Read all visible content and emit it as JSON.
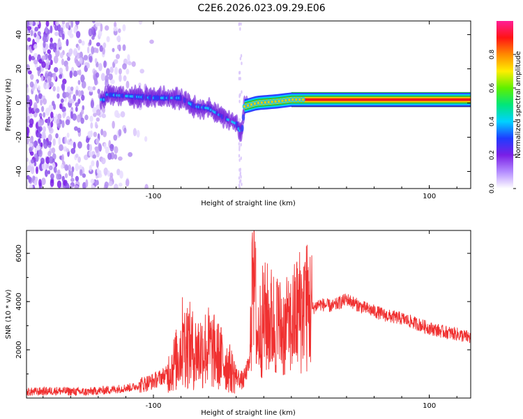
{
  "title": "C2E6.2026.023.09.29.E06",
  "colors": {
    "signal": "#f03030",
    "spectral_purple": "#7a1fe6",
    "spectral_light": "#c8a8f5",
    "band_green": "#27c03a",
    "band_red": "#f01818",
    "frame": "#000000"
  },
  "chart_data": [
    {
      "type": "heatmap",
      "title": "C2E6.2026.023.09.29.E06",
      "xlabel": "Height of straight line (km)",
      "ylabel": "Frequency (Hz)",
      "xlim": [
        -192,
        130
      ],
      "ylim": [
        -50,
        48
      ],
      "xticks": [
        -100,
        100
      ],
      "xtick_labels": [
        "-100",
        "100"
      ],
      "yticks": [
        -40,
        -20,
        0,
        20,
        40
      ],
      "ytick_labels": [
        "-40",
        "-20",
        "0",
        "20",
        "40"
      ],
      "colorbar": {
        "label": "Normalized spectral amplitude",
        "range": [
          0,
          1
        ],
        "ticks": [
          0.0,
          0.2,
          0.4,
          0.6,
          0.8
        ],
        "tick_labels": [
          "0.0",
          "0.2",
          "0.4",
          "0.6",
          "0.8"
        ],
        "colormap": [
          "#ffffff",
          "#b48cff",
          "#7a1fe6",
          "#1f3cff",
          "#00d2ff",
          "#00e67a",
          "#5ff000",
          "#ffee00",
          "#ff8a00",
          "#ff1414",
          "#ff1e96"
        ]
      },
      "trace_path": [
        [
          -135,
          5
        ],
        [
          -100,
          3
        ],
        [
          -80,
          3
        ],
        [
          -70,
          -2
        ],
        [
          -60,
          -3
        ],
        [
          -50,
          -8
        ],
        [
          -40,
          -12
        ],
        [
          -36,
          -18
        ],
        [
          -34,
          -2
        ],
        [
          -25,
          0
        ],
        [
          -10,
          1
        ],
        [
          0,
          2
        ],
        [
          20,
          2
        ],
        [
          60,
          2
        ],
        [
          100,
          2
        ],
        [
          130,
          2
        ]
      ],
      "noise_region": {
        "x_from": -192,
        "x_to": -95,
        "y_from": -50,
        "y_to": 48
      }
    },
    {
      "type": "line",
      "xlabel": "Height of straight line (km)",
      "ylabel": "SNR (10 * v/v)",
      "xlim": [
        -192,
        130
      ],
      "ylim": [
        0,
        6950
      ],
      "xticks": [
        -100,
        100
      ],
      "xtick_labels": [
        "-100",
        "100"
      ],
      "yticks": [
        2000,
        4000,
        6000
      ],
      "ytick_labels": [
        "2000",
        "4000",
        "6000"
      ],
      "series": [
        {
          "name": "SNR",
          "color": "#f03030",
          "x": [
            -192,
            -170,
            -150,
            -130,
            -115,
            -100,
            -90,
            -82,
            -78,
            -70,
            -60,
            -50,
            -40,
            -35,
            -30,
            -28,
            -25,
            -20,
            -15,
            -10,
            -5,
            0,
            5,
            10,
            15,
            20,
            30,
            40,
            50,
            60,
            70,
            80,
            90,
            100,
            110,
            120,
            130
          ],
          "y": [
            250,
            300,
            250,
            350,
            450,
            700,
            1000,
            1700,
            2500,
            1900,
            2100,
            1600,
            900,
            700,
            1500,
            6900,
            2500,
            3300,
            3200,
            3000,
            2800,
            3000,
            3600,
            3800,
            3700,
            3900,
            3800,
            4100,
            3800,
            3600,
            3400,
            3300,
            3100,
            2900,
            2750,
            2650,
            2500
          ],
          "peaks": [
            [
              -78,
              3350
            ],
            [
              -28,
              6900
            ],
            [
              -10,
              5000
            ],
            [
              10,
              5600
            ],
            [
              -2,
              3900
            ]
          ]
        }
      ]
    }
  ]
}
